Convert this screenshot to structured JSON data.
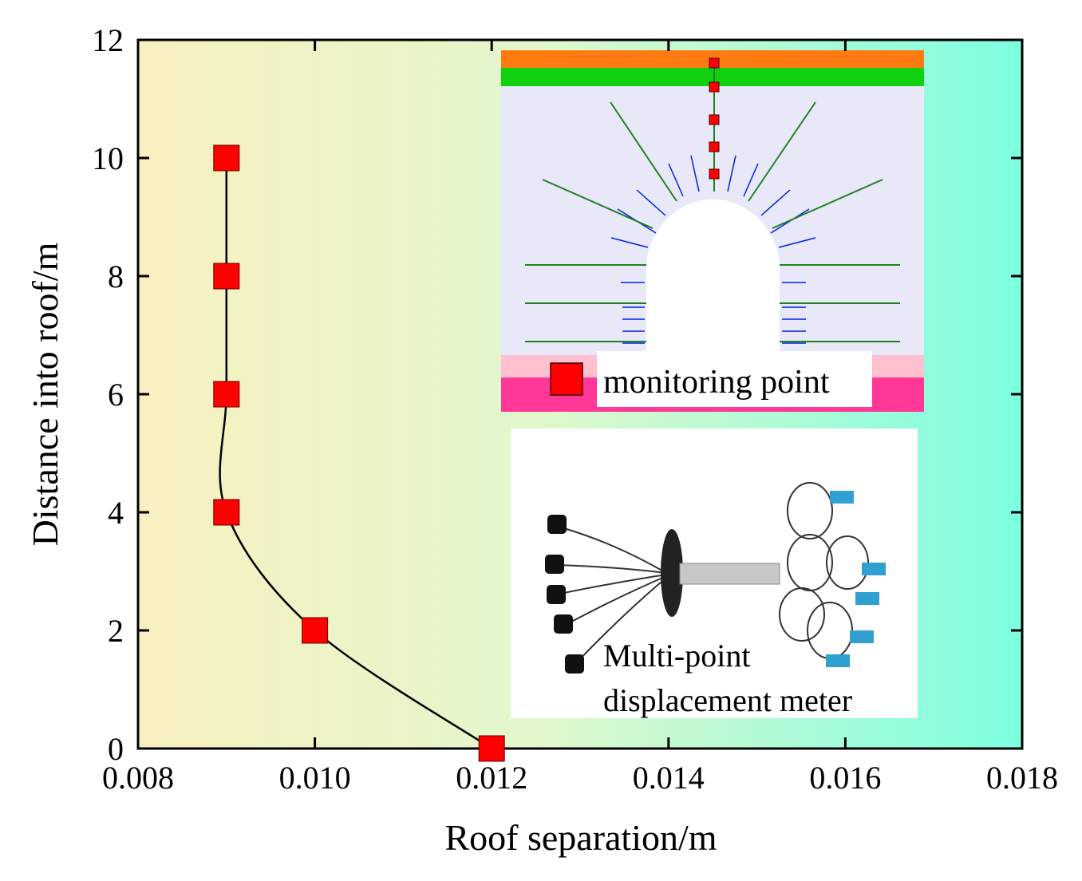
{
  "chart_data": {
    "type": "line",
    "xlabel": "Roof separation/m",
    "ylabel": "Distance into roof/m",
    "x": [
      0.012,
      0.01,
      0.009,
      0.009,
      0.009,
      0.009
    ],
    "series": [
      {
        "color": "#000000",
        "marker_color": "#ff0000",
        "values": [
          0,
          2,
          4,
          6,
          8,
          10
        ]
      }
    ],
    "xlim": [
      0.008,
      0.018
    ],
    "xticks": [
      0.008,
      {
        "value": 0.01,
        "label": "0.010"
      },
      0.012,
      0.014,
      0.016,
      0.018
    ],
    "ylim": [
      0,
      12
    ],
    "yticks": [
      0,
      2,
      4,
      6,
      8,
      10,
      12
    ],
    "smooth": true,
    "annotations": [
      "monitoring point",
      "Multi-point",
      "displacement meter"
    ]
  }
}
